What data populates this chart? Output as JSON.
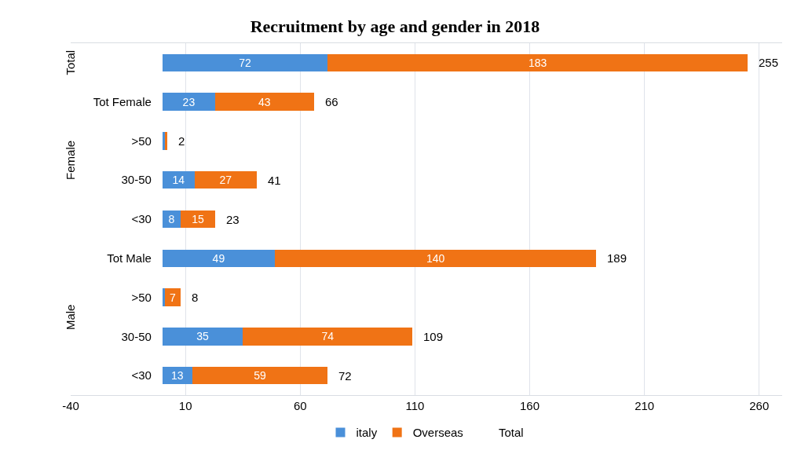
{
  "chart_data": {
    "type": "bar",
    "orientation": "horizontal",
    "stacked": true,
    "title": "Recruitment by age and gender in 2018",
    "categories": [
      null,
      "Tot Female",
      ">50",
      "30-50",
      "<30",
      "Tot Male",
      ">50",
      "30-50",
      "<30"
    ],
    "annotations": [
      "Total",
      "Female",
      "Male"
    ],
    "series": [
      {
        "name": "italy",
        "color": "#4a90d9",
        "values": [
          72,
          23,
          1,
          14,
          8,
          49,
          1,
          35,
          13
        ],
        "value_labels": [
          "72",
          "23",
          null,
          "14",
          "8",
          "49",
          null,
          "35",
          "13"
        ]
      },
      {
        "name": "Overseas",
        "color": "#f07315",
        "values": [
          183,
          43,
          1,
          27,
          15,
          140,
          7,
          74,
          59
        ],
        "value_labels": [
          "183",
          "43",
          null,
          "27",
          "15",
          "140",
          "7",
          "74",
          "59"
        ]
      },
      {
        "name": "Total",
        "values": [
          null,
          null,
          null,
          null,
          null,
          null,
          null,
          null,
          null
        ]
      }
    ],
    "totals": [
      "255",
      "66",
      "2",
      "41",
      "23",
      "189",
      "8",
      "109",
      "72"
    ],
    "xlim": [
      -40,
      270
    ],
    "xticks": [
      -40,
      10,
      60,
      110,
      160,
      210,
      260
    ],
    "grid": "x",
    "legend": "bottom"
  }
}
